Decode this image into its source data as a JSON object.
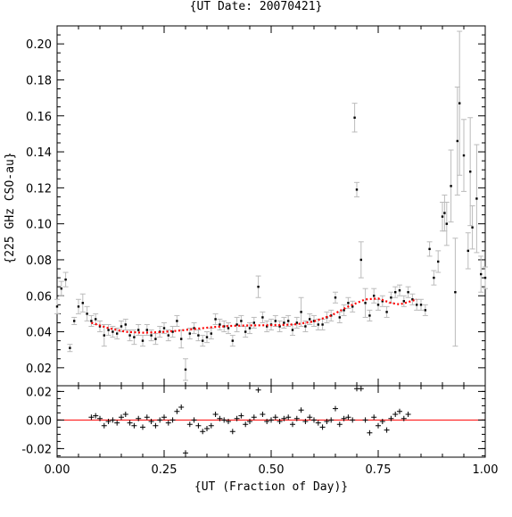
{
  "chart_data": [
    {
      "type": "scatter",
      "title": "{UT Date: 20070421}",
      "xlabel": "",
      "ylabel": "{225 GHz CSO-au}",
      "xlim": [
        0.0,
        1.0
      ],
      "ylim": [
        0.01,
        0.21
      ],
      "yticks": [
        "0.02",
        "0.04",
        "0.06",
        "0.08",
        "0.10",
        "0.12",
        "0.14",
        "0.16",
        "0.18",
        "0.20"
      ],
      "grid": false,
      "colors": {
        "points": "#000000",
        "errorbars": "#bbbbbb",
        "fit": "#ff0000"
      },
      "series": [
        {
          "points": [
            [
              0.0,
              0.054,
              0.004
            ],
            [
              0.01,
              0.064,
              0.004
            ],
            [
              0.02,
              0.069,
              0.004
            ],
            [
              0.03,
              0.031,
              0.002
            ],
            [
              0.04,
              0.046,
              0.002
            ],
            [
              0.05,
              0.054,
              0.004
            ],
            [
              0.06,
              0.056,
              0.005
            ],
            [
              0.07,
              0.05,
              0.004
            ],
            [
              0.08,
              0.046,
              0.003
            ],
            [
              0.09,
              0.047,
              0.003
            ],
            [
              0.1,
              0.043,
              0.003
            ],
            [
              0.11,
              0.038,
              0.006
            ],
            [
              0.12,
              0.041,
              0.003
            ],
            [
              0.13,
              0.04,
              0.003
            ],
            [
              0.14,
              0.039,
              0.003
            ],
            [
              0.15,
              0.043,
              0.003
            ],
            [
              0.16,
              0.044,
              0.003
            ],
            [
              0.17,
              0.038,
              0.003
            ],
            [
              0.18,
              0.037,
              0.004
            ],
            [
              0.19,
              0.041,
              0.003
            ],
            [
              0.2,
              0.035,
              0.003
            ],
            [
              0.21,
              0.041,
              0.003
            ],
            [
              0.22,
              0.038,
              0.003
            ],
            [
              0.23,
              0.036,
              0.003
            ],
            [
              0.24,
              0.04,
              0.003
            ],
            [
              0.25,
              0.042,
              0.003
            ],
            [
              0.26,
              0.038,
              0.003
            ],
            [
              0.27,
              0.04,
              0.003
            ],
            [
              0.28,
              0.046,
              0.003
            ],
            [
              0.29,
              0.036,
              0.005
            ],
            [
              0.3,
              0.019,
              0.006
            ],
            [
              0.31,
              0.039,
              0.003
            ],
            [
              0.32,
              0.042,
              0.003
            ],
            [
              0.33,
              0.038,
              0.003
            ],
            [
              0.34,
              0.035,
              0.003
            ],
            [
              0.35,
              0.037,
              0.003
            ],
            [
              0.36,
              0.039,
              0.003
            ],
            [
              0.37,
              0.047,
              0.003
            ],
            [
              0.38,
              0.044,
              0.003
            ],
            [
              0.39,
              0.043,
              0.003
            ],
            [
              0.4,
              0.042,
              0.003
            ],
            [
              0.41,
              0.035,
              0.003
            ],
            [
              0.42,
              0.044,
              0.004
            ],
            [
              0.43,
              0.046,
              0.003
            ],
            [
              0.44,
              0.04,
              0.003
            ],
            [
              0.45,
              0.042,
              0.003
            ],
            [
              0.46,
              0.045,
              0.003
            ],
            [
              0.47,
              0.065,
              0.006
            ],
            [
              0.48,
              0.048,
              0.003
            ],
            [
              0.49,
              0.043,
              0.003
            ],
            [
              0.5,
              0.044,
              0.003
            ],
            [
              0.51,
              0.046,
              0.003
            ],
            [
              0.52,
              0.043,
              0.003
            ],
            [
              0.53,
              0.045,
              0.003
            ],
            [
              0.54,
              0.046,
              0.003
            ],
            [
              0.55,
              0.041,
              0.003
            ],
            [
              0.56,
              0.045,
              0.003
            ],
            [
              0.57,
              0.051,
              0.008
            ],
            [
              0.58,
              0.043,
              0.003
            ],
            [
              0.59,
              0.047,
              0.003
            ],
            [
              0.6,
              0.046,
              0.003
            ],
            [
              0.61,
              0.044,
              0.003
            ],
            [
              0.62,
              0.044,
              0.003
            ],
            [
              0.63,
              0.048,
              0.003
            ],
            [
              0.64,
              0.049,
              0.003
            ],
            [
              0.65,
              0.059,
              0.003
            ],
            [
              0.66,
              0.048,
              0.003
            ],
            [
              0.67,
              0.052,
              0.003
            ],
            [
              0.68,
              0.056,
              0.003
            ],
            [
              0.69,
              0.054,
              0.003
            ],
            [
              0.695,
              0.159,
              0.008
            ],
            [
              0.7,
              0.119,
              0.004
            ],
            [
              0.71,
              0.08,
              0.01
            ],
            [
              0.72,
              0.056,
              0.008
            ],
            [
              0.73,
              0.049,
              0.003
            ],
            [
              0.74,
              0.06,
              0.004
            ],
            [
              0.75,
              0.055,
              0.003
            ],
            [
              0.76,
              0.057,
              0.003
            ],
            [
              0.77,
              0.051,
              0.003
            ],
            [
              0.78,
              0.059,
              0.003
            ],
            [
              0.79,
              0.062,
              0.003
            ],
            [
              0.8,
              0.063,
              0.003
            ],
            [
              0.81,
              0.057,
              0.003
            ],
            [
              0.82,
              0.062,
              0.003
            ],
            [
              0.83,
              0.058,
              0.003
            ],
            [
              0.84,
              0.055,
              0.003
            ],
            [
              0.85,
              0.055,
              0.003
            ],
            [
              0.86,
              0.052,
              0.003
            ],
            [
              0.87,
              0.086,
              0.004
            ],
            [
              0.88,
              0.07,
              0.004
            ],
            [
              0.89,
              0.079,
              0.006
            ],
            [
              0.9,
              0.104,
              0.008
            ],
            [
              0.905,
              0.106,
              0.01
            ],
            [
              0.91,
              0.1,
              0.012
            ],
            [
              0.92,
              0.121,
              0.02
            ],
            [
              0.93,
              0.062,
              0.03
            ],
            [
              0.935,
              0.146,
              0.03
            ],
            [
              0.94,
              0.167,
              0.04
            ],
            [
              0.95,
              0.138,
              0.02
            ],
            [
              0.96,
              0.085,
              0.01
            ],
            [
              0.965,
              0.129,
              0.03
            ],
            [
              0.97,
              0.098,
              0.012
            ],
            [
              0.98,
              0.114,
              0.03
            ],
            [
              0.99,
              0.072,
              0.01
            ],
            [
              1.0,
              0.07,
              0.006
            ]
          ]
        }
      ],
      "fit": {
        "x": [
          0.08,
          0.12,
          0.16,
          0.2,
          0.24,
          0.28,
          0.32,
          0.36,
          0.4,
          0.44,
          0.48,
          0.52,
          0.56,
          0.6,
          0.64,
          0.68,
          0.72,
          0.75,
          0.78,
          0.8,
          0.82,
          0.84
        ],
        "y": [
          0.045,
          0.042,
          0.04,
          0.0395,
          0.0398,
          0.0405,
          0.0415,
          0.0425,
          0.0432,
          0.0435,
          0.0436,
          0.0437,
          0.0442,
          0.0458,
          0.049,
          0.054,
          0.058,
          0.0585,
          0.056,
          0.0552,
          0.0565,
          0.058
        ]
      }
    },
    {
      "type": "scatter",
      "xlabel": "{UT (Fraction of Day)}",
      "ylabel": "",
      "xlim": [
        0.0,
        1.0
      ],
      "ylim": [
        -0.026,
        0.024
      ],
      "xticks": [
        "0.00",
        "0.25",
        "0.50",
        "0.75",
        "1.00"
      ],
      "yticks": [
        "-0.02",
        "0.00",
        "0.02"
      ],
      "grid": false,
      "zero_line_color": "#ff0000",
      "residuals": {
        "x": [
          0.08,
          0.09,
          0.1,
          0.11,
          0.12,
          0.13,
          0.14,
          0.15,
          0.16,
          0.17,
          0.18,
          0.19,
          0.2,
          0.21,
          0.22,
          0.23,
          0.24,
          0.25,
          0.26,
          0.27,
          0.28,
          0.29,
          0.3,
          0.31,
          0.32,
          0.33,
          0.34,
          0.35,
          0.36,
          0.37,
          0.38,
          0.39,
          0.4,
          0.41,
          0.42,
          0.43,
          0.44,
          0.45,
          0.46,
          0.47,
          0.48,
          0.49,
          0.5,
          0.51,
          0.52,
          0.53,
          0.54,
          0.55,
          0.56,
          0.57,
          0.58,
          0.59,
          0.6,
          0.61,
          0.62,
          0.63,
          0.64,
          0.65,
          0.66,
          0.67,
          0.68,
          0.69,
          0.7,
          0.71,
          0.72,
          0.73,
          0.74,
          0.75,
          0.76,
          0.77,
          0.78,
          0.79,
          0.8,
          0.81,
          0.82
        ],
        "y": [
          0.002,
          0.003,
          0.001,
          -0.004,
          -0.001,
          0.0,
          -0.002,
          0.002,
          0.004,
          -0.002,
          -0.004,
          0.001,
          -0.005,
          0.002,
          -0.001,
          -0.004,
          0.0,
          0.002,
          -0.002,
          0.0,
          0.006,
          0.009,
          -0.023,
          -0.003,
          0.0,
          -0.004,
          -0.008,
          -0.006,
          -0.004,
          0.004,
          0.001,
          0.0,
          -0.001,
          -0.008,
          0.001,
          0.003,
          -0.003,
          -0.001,
          0.002,
          0.021,
          0.004,
          -0.001,
          0.0,
          0.002,
          -0.001,
          0.001,
          0.002,
          -0.003,
          0.001,
          0.007,
          -0.001,
          0.002,
          0.0,
          -0.002,
          -0.005,
          -0.001,
          0.0,
          0.008,
          -0.003,
          0.001,
          0.002,
          0.0,
          0.022,
          0.022,
          0.0,
          -0.009,
          0.002,
          -0.004,
          -0.001,
          -0.007,
          0.001,
          0.004,
          0.006,
          0.001,
          0.004
        ]
      }
    }
  ]
}
